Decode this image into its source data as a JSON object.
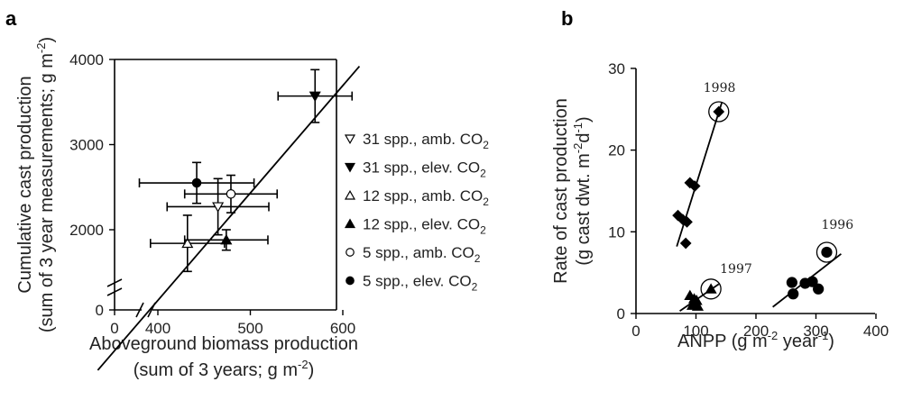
{
  "chart_data": [
    {
      "type": "scatter",
      "panel_label": "a",
      "xlabel_line1": "Aboveground biomass production",
      "xlabel_line2_prefix": "(sum of 3 years; g m",
      "xlabel_line2_sup": "-2",
      "xlabel_line2_suffix": ")",
      "ylabel_line1": "Cumulative cast production",
      "ylabel_line2_prefix": "(sum of 3 year measurements; g m",
      "ylabel_line2_sup": "-2",
      "ylabel_line2_suffix": ")",
      "xlim": [
        0,
        620
      ],
      "ylim": [
        0,
        4000
      ],
      "x_ticks": [
        0,
        400,
        500,
        600
      ],
      "y_ticks": [
        0,
        2000,
        3000,
        4000
      ],
      "axis_break": true,
      "regression": {
        "x": [
          335,
          618
        ],
        "y": [
          350,
          3920
        ]
      },
      "legend_position": "right",
      "series": [
        {
          "name": "31 spp., amb. CO",
          "name_sub": "2",
          "marker": "triangle-down-open",
          "x": 465,
          "y": 2270,
          "xerr": 55,
          "yerr": 330
        },
        {
          "name": "31 spp., elev. CO",
          "name_sub": "2",
          "marker": "triangle-down-filled",
          "x": 570,
          "y": 3570,
          "xerr": 40,
          "yerr": 310
        },
        {
          "name": "12 spp., amb. CO",
          "name_sub": "2",
          "marker": "triangle-up-open",
          "x": 432,
          "y": 1840,
          "xerr": 40,
          "yerr": 330
        },
        {
          "name": "12 spp., elev. CO",
          "name_sub": "2",
          "marker": "triangle-up-filled",
          "x": 474,
          "y": 1880,
          "xerr": 45,
          "yerr": 120
        },
        {
          "name": "5 spp., amb. CO",
          "name_sub": "2",
          "marker": "circle-open",
          "x": 479,
          "y": 2420,
          "xerr": 50,
          "yerr": 220
        },
        {
          "name": "5 spp., elev. CO",
          "name_sub": "2",
          "marker": "circle-filled",
          "x": 442,
          "y": 2550,
          "xerr": 62,
          "yerr": 240
        }
      ]
    },
    {
      "type": "scatter",
      "panel_label": "b",
      "xlabel_prefix": "ANPP (g m",
      "xlabel_sup1": "-2",
      "xlabel_mid": " year",
      "xlabel_sup2": "-1",
      "xlabel_suffix": ")",
      "ylabel_line1": "Rate of cast production",
      "ylabel_line2_prefix": "(g cast dwt. m",
      "ylabel_line2_sup1": "-2",
      "ylabel_line2_mid": "d",
      "ylabel_line2_sup2": "-1",
      "ylabel_line2_suffix": ")",
      "xlim": [
        0,
        400
      ],
      "ylim": [
        0,
        30
      ],
      "x_ticks": [
        0,
        100,
        200,
        300,
        400
      ],
      "y_ticks": [
        0,
        10,
        20,
        30
      ],
      "series": [
        {
          "year_label": "1998",
          "marker": "diamond",
          "x": [
            70,
            78,
            83,
            85,
            90,
            98,
            138
          ],
          "y": [
            12.0,
            11.5,
            8.6,
            11.2,
            16.0,
            15.6,
            24.7
          ],
          "fit": {
            "x": [
              68,
              143
            ],
            "y": [
              8.2,
              25.8
            ]
          },
          "highlight": {
            "x": 138,
            "y": 24.7
          }
        },
        {
          "year_label": "1997",
          "marker": "triangle-up",
          "x": [
            90,
            94,
            97,
            99,
            101,
            103,
            125
          ],
          "y": [
            2.2,
            1.0,
            1.8,
            1.2,
            1.6,
            0.9,
            3.0
          ],
          "fit": {
            "x": [
              73,
              138
            ],
            "y": [
              0.3,
              3.6
            ]
          },
          "highlight": {
            "x": 125,
            "y": 3.0
          }
        },
        {
          "year_label": "1996",
          "marker": "circle",
          "x": [
            260,
            262,
            282,
            294,
            304,
            318
          ],
          "y": [
            3.8,
            2.4,
            3.7,
            3.9,
            3.0,
            7.5
          ],
          "fit": {
            "x": [
              228,
              342
            ],
            "y": [
              0.8,
              7.3
            ]
          },
          "highlight": {
            "x": 318,
            "y": 7.5
          }
        }
      ]
    }
  ]
}
